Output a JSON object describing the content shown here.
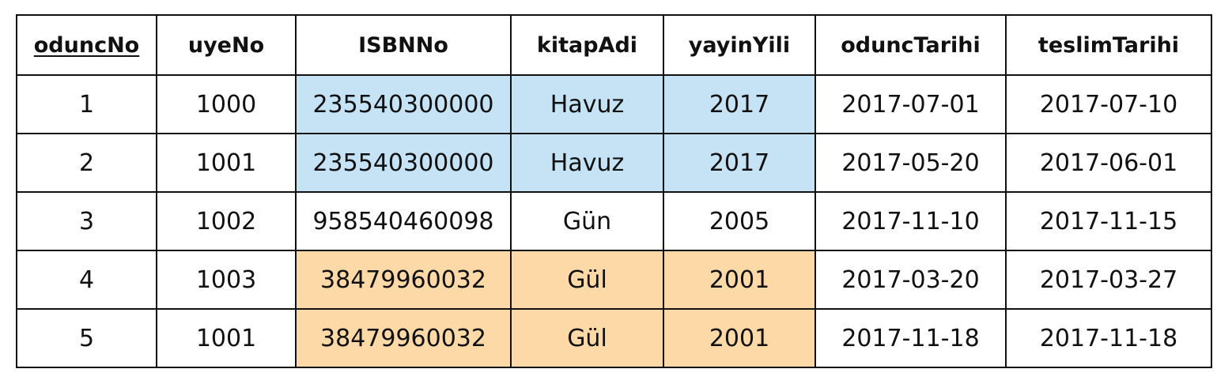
{
  "table": {
    "columns": [
      {
        "label": "oduncNo",
        "primary_key": true
      },
      {
        "label": "uyeNo",
        "primary_key": false
      },
      {
        "label": "ISBNNo",
        "primary_key": false
      },
      {
        "label": "kitapAdi",
        "primary_key": false
      },
      {
        "label": "yayinYili",
        "primary_key": false
      },
      {
        "label": "oduncTarihi",
        "primary_key": false
      },
      {
        "label": "teslimTarihi",
        "primary_key": false
      }
    ],
    "rows": [
      {
        "cells": [
          "1",
          "1000",
          "235540300000",
          "Havuz",
          "2017",
          "2017-07-01",
          "2017-07-10"
        ],
        "highlight": "blue"
      },
      {
        "cells": [
          "2",
          "1001",
          "235540300000",
          "Havuz",
          "2017",
          "2017-05-20",
          "2017-06-01"
        ],
        "highlight": "blue"
      },
      {
        "cells": [
          "3",
          "1002",
          "958540460098",
          "Gün",
          "2005",
          "2017-11-10",
          "2017-11-15"
        ],
        "highlight": "none"
      },
      {
        "cells": [
          "4",
          "1003",
          "38479960032",
          "Gül",
          "2001",
          "2017-03-20",
          "2017-03-27"
        ],
        "highlight": "orange"
      },
      {
        "cells": [
          "5",
          "1001",
          "38479960032",
          "Gül",
          "2001",
          "2017-11-18",
          "2017-11-18"
        ],
        "highlight": "orange"
      }
    ],
    "highlighted_columns": [
      "ISBNNo",
      "kitapAdi",
      "yayinYili"
    ],
    "colors": {
      "blue": "#c5e3f5",
      "orange": "#fdd9a8",
      "border": "#111111"
    }
  }
}
